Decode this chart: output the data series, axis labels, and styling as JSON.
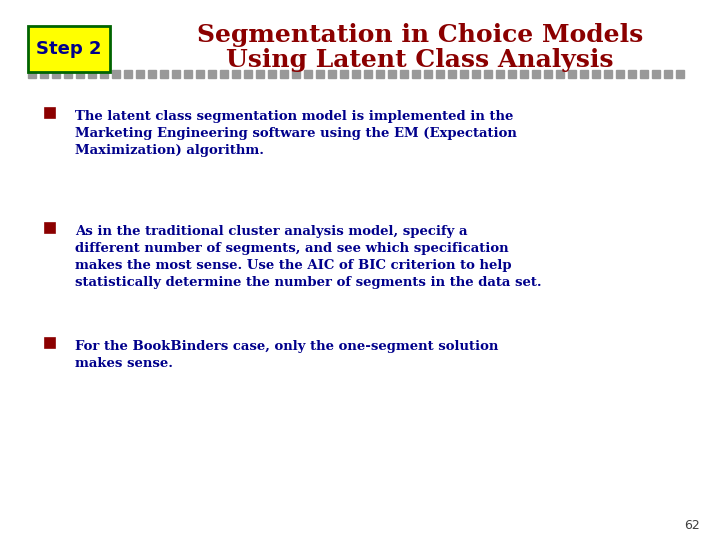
{
  "title_line1": "Segmentation in Choice Models",
  "title_line2": "Using Latent Class Analysis",
  "step_label": "Step 2",
  "title_color": "#8B0000",
  "step_bg_color": "#FFFF00",
  "step_border_color": "#006400",
  "step_text_color": "#00008B",
  "bullet_marker_color": "#8B0000",
  "bullet_text_color": "#00008B",
  "background_color": "#FFFFFF",
  "separator_color": "#999999",
  "page_number": "62",
  "bullet_lines": [
    [
      "The latent class segmentation model is implemented in the",
      "Marketing Engineering software using the EM (Expectation",
      "Maximization) algorithm."
    ],
    [
      "As in the traditional cluster analysis model, specify a",
      "different number of segments, and see which specification",
      "makes the most sense. Use the AIC of BIC criterion to help",
      "statistically determine the number of segments in the data set."
    ],
    [
      "For the BookBinders case, only the one-segment solution",
      "makes sense."
    ]
  ]
}
